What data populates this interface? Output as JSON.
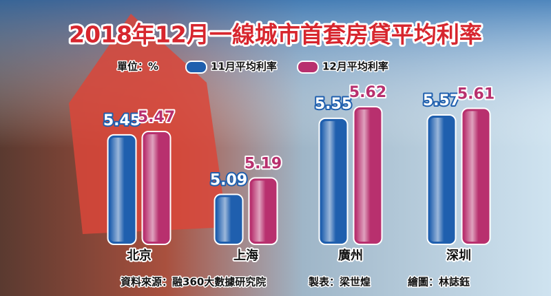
{
  "chart_data": {
    "type": "bar",
    "title": "2018年12月一線城市首套房貸平均利率",
    "unit_label": "單位：%",
    "categories": [
      "北京",
      "上海",
      "廣州",
      "深圳"
    ],
    "series": [
      {
        "name": "11月平均利率",
        "color": "#1f5fae",
        "values": [
          5.45,
          5.09,
          5.55,
          5.57
        ]
      },
      {
        "name": "12月平均利率",
        "color": "#b8306e",
        "values": [
          5.47,
          5.19,
          5.62,
          5.61
        ]
      }
    ],
    "source": "資料來源：融360大數據研究院",
    "table_by": "製表：梁世煌",
    "drawn_by": "繪圖：林誌鈺"
  }
}
